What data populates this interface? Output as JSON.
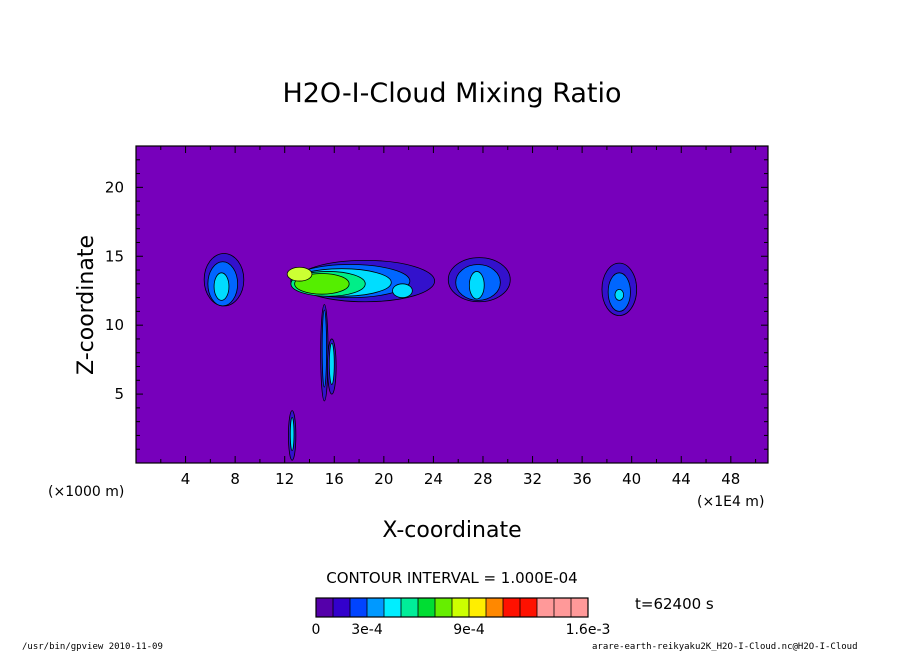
{
  "chart_data": {
    "type": "contour",
    "title": "H2O-I-Cloud Mixing Ratio",
    "xlabel": "X-coordinate",
    "ylabel": "Z-coordinate",
    "x_unit_left": "(×1000 m)",
    "x_unit_right": "(×1E4 m)",
    "xlim": [
      0,
      51
    ],
    "ylim": [
      0,
      23
    ],
    "xticks": [
      "4",
      "8",
      "12",
      "16",
      "20",
      "24",
      "28",
      "32",
      "36",
      "40",
      "44",
      "48"
    ],
    "yticks": [
      "5",
      "10",
      "15",
      "20"
    ],
    "contour_interval": "CONTOUR INTERVAL = 1.000E-04",
    "time": "t=62400 s",
    "colorbar": {
      "colors": [
        "#5500aa",
        "#3300cc",
        "#0044ff",
        "#0099ff",
        "#00eeff",
        "#00ee99",
        "#00dd33",
        "#66ee00",
        "#ccff00",
        "#ffee00",
        "#ff8800",
        "#ff1100",
        "#ff1100",
        "#ff9999",
        "#ff9999",
        "#ff9999"
      ],
      "tick_labels": [
        "0",
        "3e-4",
        "9e-4",
        "1.6e-3"
      ],
      "tick_index": [
        0,
        3,
        9,
        16
      ]
    },
    "background_color": "#7700bb",
    "features": [
      {
        "x": 7.2,
        "z": 13.0,
        "max": "3e-4"
      },
      {
        "x": 16.0,
        "z": 13.0,
        "max": "1.0e-3"
      },
      {
        "x": 27.3,
        "z": 13.3,
        "max": "3e-4"
      },
      {
        "x": 39.0,
        "z": 12.5,
        "max": "3e-4"
      }
    ]
  },
  "footer": {
    "left": "/usr/bin/gpview  2010-11-09",
    "right": "arare-earth-reikyaku2K_H2O-I-Cloud.nc@H2O-I-Cloud"
  }
}
